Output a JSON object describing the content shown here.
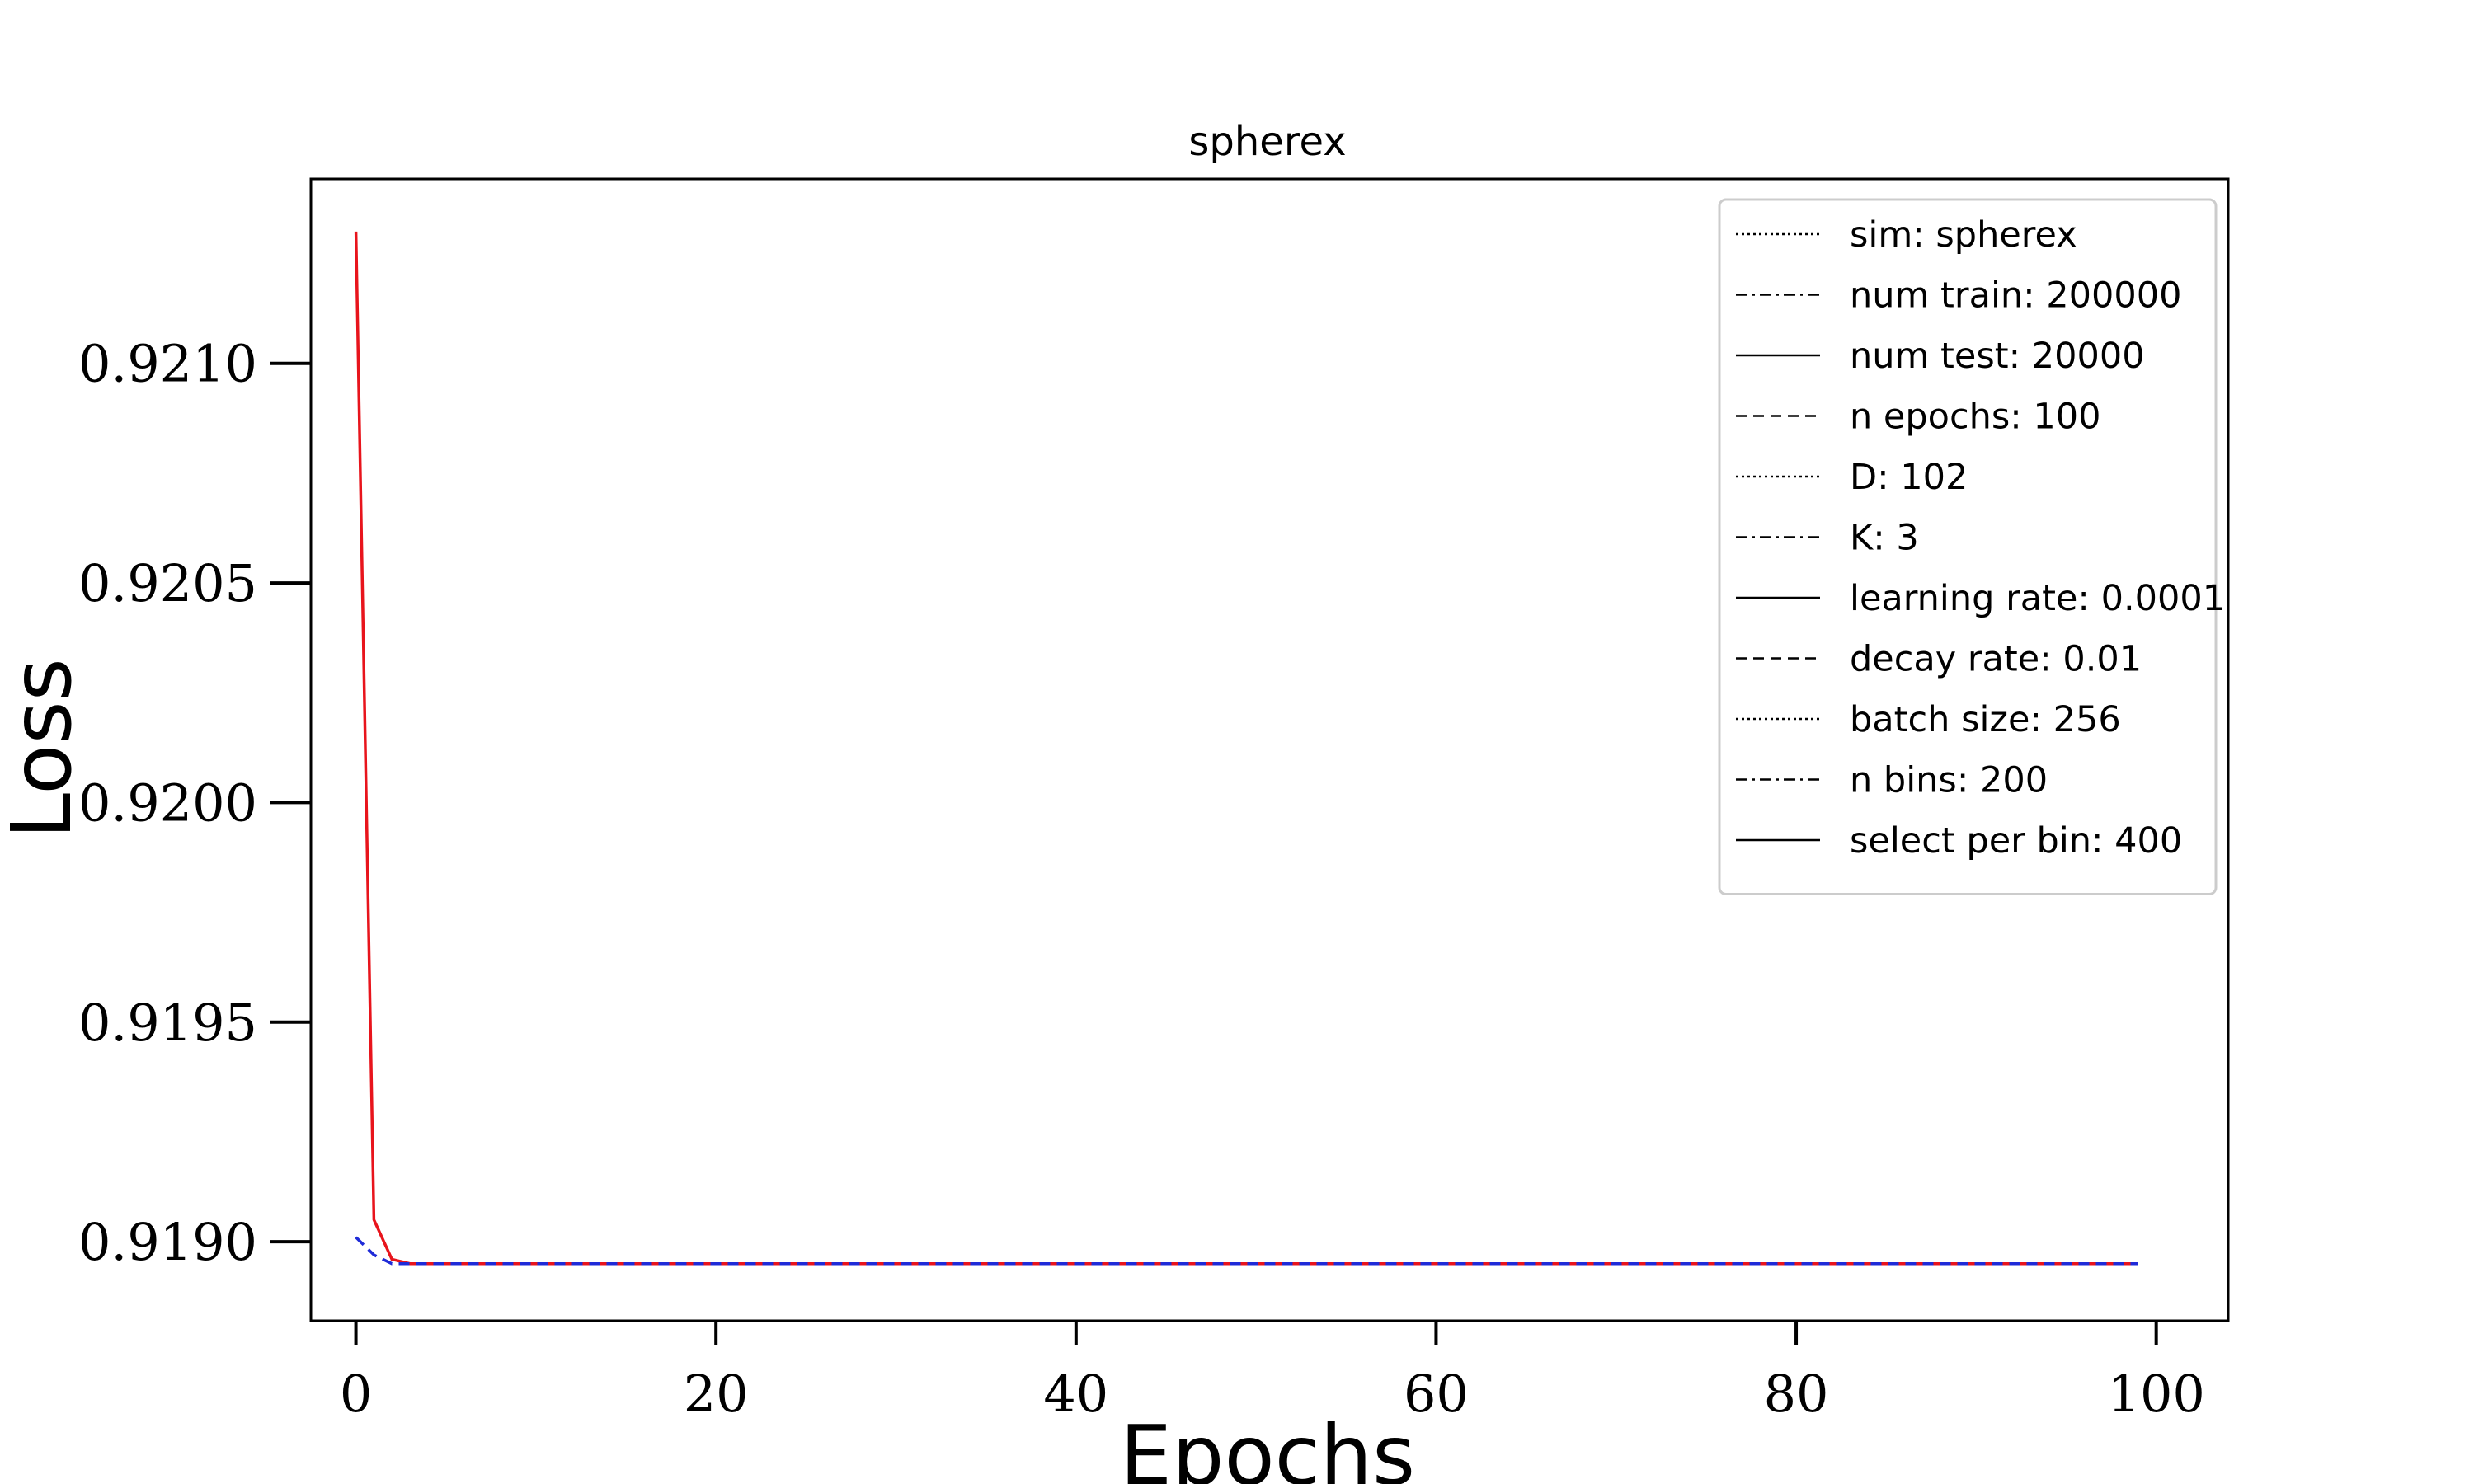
{
  "chart_data": {
    "type": "line",
    "title": "spherex",
    "xlabel": "Epochs",
    "ylabel": "Loss",
    "xlim": [
      -2.5,
      104
    ],
    "ylim": [
      0.91882,
      0.92142
    ],
    "xticks": [
      0,
      20,
      40,
      60,
      80,
      100
    ],
    "xtick_labels": [
      "0",
      "20",
      "40",
      "60",
      "80",
      "100"
    ],
    "yticks": [
      0.919,
      0.9195,
      0.92,
      0.9205,
      0.921
    ],
    "ytick_labels": [
      "0.9190",
      "0.9195",
      "0.9200",
      "0.9205",
      "0.9210"
    ],
    "grid": false,
    "legend_position": "upper-right",
    "series": [
      {
        "color": "#e8141c",
        "dash": "solid",
        "x": [
          0,
          1,
          2,
          3,
          5,
          10,
          20,
          40,
          60,
          80,
          99
        ],
        "y": [
          0.9213,
          0.91905,
          0.91896,
          0.91895,
          0.91895,
          0.91895,
          0.91895,
          0.91895,
          0.91895,
          0.91895,
          0.91895
        ]
      },
      {
        "color": "#1f2bd8",
        "dash": "dashed",
        "x": [
          0,
          1,
          2,
          3,
          5,
          10,
          20,
          40,
          60,
          80,
          99
        ],
        "y": [
          0.91901,
          0.91897,
          0.91895,
          0.91895,
          0.91895,
          0.91895,
          0.91895,
          0.91895,
          0.91895,
          0.91895,
          0.91895
        ]
      }
    ],
    "legend": [
      {
        "label": "sim: spherex",
        "style": "dotted"
      },
      {
        "label": "num train: 200000",
        "style": "dashdot"
      },
      {
        "label": "num test: 20000",
        "style": "solid"
      },
      {
        "label": "n epochs: 100",
        "style": "dashed"
      },
      {
        "label": "D: 102",
        "style": "dotted"
      },
      {
        "label": "K: 3",
        "style": "dashdot"
      },
      {
        "label": "learning rate: 0.0001",
        "style": "solid"
      },
      {
        "label": "decay rate: 0.01",
        "style": "dashed"
      },
      {
        "label": "batch size: 256",
        "style": "dotted"
      },
      {
        "label": "n bins: 200",
        "style": "dashdot"
      },
      {
        "label": "select per bin: 400",
        "style": "solid"
      }
    ]
  }
}
